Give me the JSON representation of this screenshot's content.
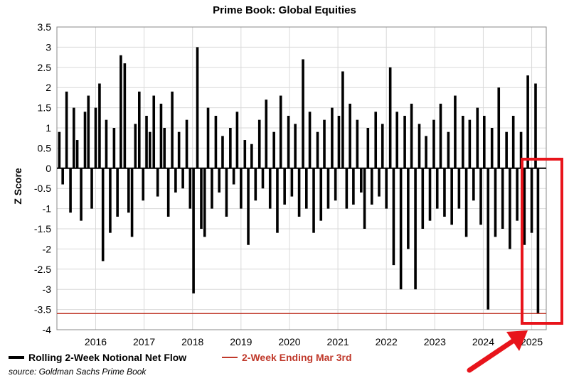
{
  "chart_data": {
    "type": "bar",
    "title": "Prime Book: Global Equities",
    "ylabel": "Z Score",
    "xlabel": "",
    "ylim": [
      -4,
      3.5
    ],
    "xlim": [
      2015.2,
      2025.3
    ],
    "grid": true,
    "yticks": [
      "3.5",
      "3",
      "2.5",
      "2",
      "1.5",
      "1",
      "0.5",
      "0",
      "-0.5",
      "-1",
      "-1.5",
      "-2",
      "-2.5",
      "-3",
      "-3.5",
      "-4"
    ],
    "xticks": [
      "2016",
      "2017",
      "2018",
      "2019",
      "2020",
      "2021",
      "2022",
      "2023",
      "2024",
      "2025"
    ],
    "reference_line": {
      "name": "2-Week Ending Mar 3rd",
      "value": -3.6,
      "color": "#c0392b"
    },
    "series": [
      {
        "name": "Rolling 2-Week Notional Net Flow",
        "color": "#000000",
        "x": [
          2015.25,
          2015.32,
          2015.4,
          2015.48,
          2015.55,
          2015.62,
          2015.7,
          2015.78,
          2015.85,
          2015.92,
          2016.0,
          2016.08,
          2016.15,
          2016.22,
          2016.3,
          2016.38,
          2016.45,
          2016.52,
          2016.6,
          2016.68,
          2016.75,
          2016.82,
          2016.9,
          2016.98,
          2017.05,
          2017.12,
          2017.2,
          2017.28,
          2017.35,
          2017.42,
          2017.5,
          2017.58,
          2017.65,
          2017.72,
          2017.8,
          2017.88,
          2017.95,
          2018.02,
          2018.1,
          2018.18,
          2018.25,
          2018.32,
          2018.4,
          2018.48,
          2018.55,
          2018.62,
          2018.7,
          2018.78,
          2018.85,
          2018.92,
          2019.0,
          2019.08,
          2019.15,
          2019.22,
          2019.3,
          2019.38,
          2019.45,
          2019.52,
          2019.6,
          2019.68,
          2019.75,
          2019.82,
          2019.9,
          2019.98,
          2020.05,
          2020.12,
          2020.2,
          2020.28,
          2020.35,
          2020.42,
          2020.5,
          2020.58,
          2020.65,
          2020.72,
          2020.8,
          2020.88,
          2020.95,
          2021.02,
          2021.1,
          2021.18,
          2021.25,
          2021.32,
          2021.4,
          2021.48,
          2021.55,
          2021.62,
          2021.7,
          2021.78,
          2021.85,
          2021.92,
          2022.0,
          2022.08,
          2022.15,
          2022.22,
          2022.3,
          2022.38,
          2022.45,
          2022.52,
          2022.6,
          2022.68,
          2022.75,
          2022.82,
          2022.9,
          2022.98,
          2023.05,
          2023.12,
          2023.2,
          2023.28,
          2023.35,
          2023.42,
          2023.5,
          2023.58,
          2023.65,
          2023.72,
          2023.8,
          2023.88,
          2023.95,
          2024.02,
          2024.1,
          2024.18,
          2024.25,
          2024.32,
          2024.4,
          2024.48,
          2024.55,
          2024.62,
          2024.7,
          2024.78,
          2024.85,
          2024.92,
          2025.0,
          2025.08,
          2025.13
        ],
        "values": [
          0.9,
          -0.4,
          1.9,
          -1.1,
          1.5,
          0.7,
          -1.3,
          1.4,
          1.8,
          -1.0,
          1.5,
          2.1,
          -2.3,
          1.2,
          -1.6,
          1.0,
          -1.2,
          2.8,
          2.6,
          -1.1,
          -1.7,
          1.1,
          1.9,
          -0.8,
          1.3,
          0.9,
          1.8,
          -0.7,
          1.6,
          1.0,
          -1.2,
          1.9,
          -0.6,
          0.9,
          -0.5,
          1.2,
          -1.0,
          -3.1,
          3.0,
          -1.5,
          -1.7,
          1.5,
          -1.0,
          1.3,
          -0.6,
          0.8,
          -1.2,
          1.0,
          -0.4,
          1.4,
          -1.0,
          0.7,
          -1.9,
          0.6,
          -0.8,
          1.2,
          -0.5,
          1.7,
          -1.0,
          0.9,
          -1.6,
          1.8,
          -0.9,
          1.3,
          -0.7,
          1.1,
          -1.2,
          2.7,
          -1.0,
          1.4,
          -1.6,
          0.9,
          -1.3,
          1.2,
          -1.0,
          1.5,
          -0.8,
          1.3,
          2.4,
          -1.0,
          1.6,
          -0.9,
          1.2,
          -0.6,
          -1.5,
          1.0,
          -0.9,
          1.4,
          -0.7,
          1.1,
          -1.0,
          2.5,
          -2.4,
          1.4,
          -3.0,
          1.3,
          -2.0,
          1.6,
          -3.0,
          1.1,
          -1.5,
          0.8,
          -1.3,
          1.2,
          -1.0,
          1.6,
          -1.2,
          0.9,
          -1.4,
          1.8,
          -1.0,
          1.3,
          -1.7,
          1.2,
          -0.8,
          1.5,
          -1.4,
          1.3,
          -3.5,
          1.0,
          -1.7,
          2.0,
          -1.5,
          0.9,
          -2.0,
          1.3,
          -1.3,
          0.9,
          -1.9,
          2.3,
          -1.6,
          2.1,
          -3.6
        ]
      }
    ],
    "legend": {
      "placement": "bottom-left"
    }
  },
  "source_text": "source: Goldman Sachs Prime Book"
}
